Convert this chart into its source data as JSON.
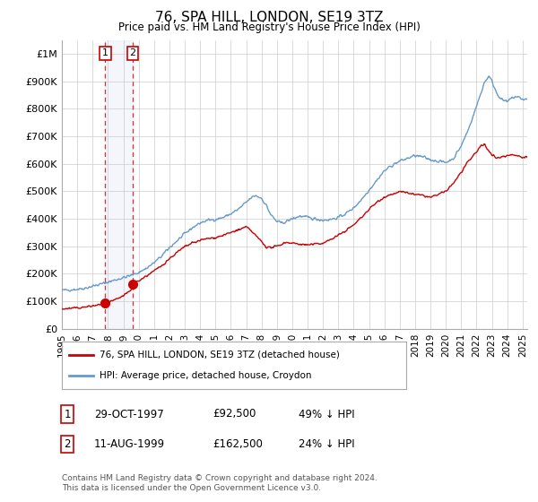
{
  "title": "76, SPA HILL, LONDON, SE19 3TZ",
  "subtitle": "Price paid vs. HM Land Registry's House Price Index (HPI)",
  "xlim_start": 1995.0,
  "xlim_end": 2025.3,
  "ylim": [
    0,
    1050000
  ],
  "yticks": [
    0,
    100000,
    200000,
    300000,
    400000,
    500000,
    600000,
    700000,
    800000,
    900000,
    1000000
  ],
  "ytick_labels": [
    "£0",
    "£100K",
    "£200K",
    "£300K",
    "£400K",
    "£500K",
    "£600K",
    "£700K",
    "£800K",
    "£900K",
    "£1M"
  ],
  "xtick_years": [
    1995,
    1996,
    1997,
    1998,
    1999,
    2000,
    2001,
    2002,
    2003,
    2004,
    2005,
    2006,
    2007,
    2008,
    2009,
    2010,
    2011,
    2012,
    2013,
    2014,
    2015,
    2016,
    2017,
    2018,
    2019,
    2020,
    2021,
    2022,
    2023,
    2024,
    2025
  ],
  "sale1_x": 1997.83,
  "sale1_y": 92500,
  "sale1_label": "1",
  "sale1_date": "29-OCT-1997",
  "sale1_price": "£92,500",
  "sale1_hpi": "49% ↓ HPI",
  "sale2_x": 1999.62,
  "sale2_y": 162500,
  "sale2_label": "2",
  "sale2_date": "11-AUG-1999",
  "sale2_price": "£162,500",
  "sale2_hpi": "24% ↓ HPI",
  "legend_line1": "76, SPA HILL, LONDON, SE19 3TZ (detached house)",
  "legend_line2": "HPI: Average price, detached house, Croydon",
  "footnote": "Contains HM Land Registry data © Crown copyright and database right 2024.\nThis data is licensed under the Open Government Licence v3.0.",
  "line_color_red": "#cc0000",
  "line_color_blue": "#6699cc",
  "background_color": "#ffffff",
  "grid_color": "#cccccc",
  "hpi_knots_x": [
    1995.0,
    1995.5,
    1996.0,
    1996.5,
    1997.0,
    1997.5,
    1998.0,
    1998.5,
    1999.0,
    1999.5,
    2000.0,
    2000.5,
    2001.0,
    2001.5,
    2002.0,
    2002.5,
    2003.0,
    2003.5,
    2004.0,
    2004.5,
    2005.0,
    2005.5,
    2006.0,
    2006.5,
    2007.0,
    2007.3,
    2007.6,
    2008.0,
    2008.3,
    2008.6,
    2009.0,
    2009.3,
    2009.6,
    2010.0,
    2010.5,
    2011.0,
    2011.5,
    2012.0,
    2012.5,
    2013.0,
    2013.5,
    2014.0,
    2014.5,
    2015.0,
    2015.5,
    2016.0,
    2016.5,
    2017.0,
    2017.5,
    2018.0,
    2018.5,
    2019.0,
    2019.5,
    2020.0,
    2020.5,
    2021.0,
    2021.5,
    2022.0,
    2022.3,
    2022.5,
    2022.8,
    2023.0,
    2023.3,
    2023.6,
    2024.0,
    2024.3,
    2024.6,
    2025.0
  ],
  "hpi_knots_y": [
    140000,
    142000,
    144000,
    148000,
    155000,
    162000,
    170000,
    178000,
    186000,
    194000,
    205000,
    220000,
    240000,
    265000,
    295000,
    320000,
    345000,
    368000,
    385000,
    395000,
    398000,
    405000,
    418000,
    435000,
    460000,
    475000,
    485000,
    475000,
    450000,
    415000,
    390000,
    385000,
    390000,
    400000,
    410000,
    405000,
    400000,
    395000,
    398000,
    405000,
    420000,
    440000,
    470000,
    505000,
    540000,
    575000,
    595000,
    610000,
    620000,
    630000,
    625000,
    615000,
    610000,
    605000,
    620000,
    665000,
    730000,
    810000,
    860000,
    895000,
    920000,
    900000,
    860000,
    835000,
    825000,
    840000,
    845000,
    835000
  ],
  "red_knots_x": [
    1995.0,
    1995.5,
    1996.0,
    1996.5,
    1997.0,
    1997.5,
    1997.83,
    1998.0,
    1998.5,
    1999.0,
    1999.5,
    1999.62,
    2000.0,
    2000.5,
    2001.0,
    2001.5,
    2002.0,
    2002.5,
    2003.0,
    2003.5,
    2004.0,
    2004.5,
    2005.0,
    2005.5,
    2006.0,
    2006.5,
    2007.0,
    2007.3,
    2007.6,
    2008.0,
    2008.3,
    2008.6,
    2009.0,
    2009.3,
    2009.6,
    2010.0,
    2010.5,
    2011.0,
    2011.5,
    2012.0,
    2012.5,
    2013.0,
    2013.5,
    2014.0,
    2014.5,
    2015.0,
    2015.5,
    2016.0,
    2016.5,
    2017.0,
    2017.5,
    2018.0,
    2018.5,
    2019.0,
    2019.5,
    2020.0,
    2020.5,
    2021.0,
    2021.5,
    2022.0,
    2022.3,
    2022.5,
    2022.8,
    2023.0,
    2023.3,
    2023.6,
    2024.0,
    2024.3,
    2024.6,
    2025.0
  ],
  "red_knots_y": [
    72000,
    74000,
    76000,
    79000,
    83000,
    88000,
    92500,
    95000,
    105000,
    120000,
    140000,
    162500,
    175000,
    192000,
    210000,
    230000,
    255000,
    278000,
    298000,
    312000,
    322000,
    328000,
    332000,
    340000,
    350000,
    360000,
    370000,
    358000,
    340000,
    318000,
    298000,
    295000,
    300000,
    308000,
    315000,
    312000,
    308000,
    305000,
    308000,
    312000,
    325000,
    340000,
    358000,
    378000,
    405000,
    435000,
    460000,
    480000,
    490000,
    498000,
    495000,
    488000,
    485000,
    478000,
    488000,
    500000,
    530000,
    570000,
    610000,
    645000,
    665000,
    670000,
    648000,
    635000,
    620000,
    625000,
    630000,
    635000,
    630000,
    625000
  ]
}
